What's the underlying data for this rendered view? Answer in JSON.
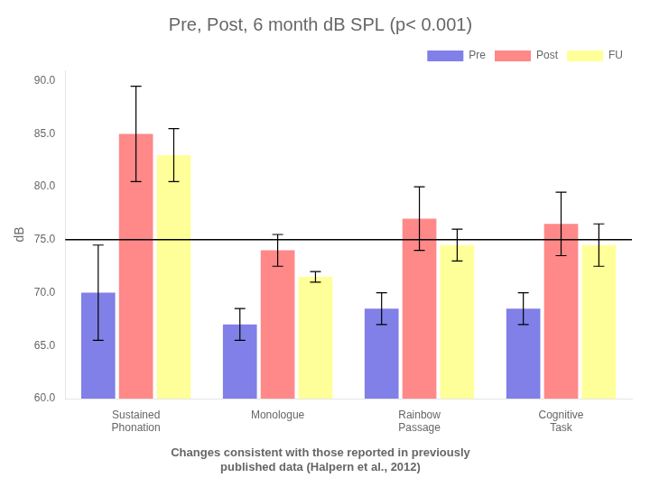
{
  "chart_data": {
    "type": "bar",
    "title": "Pre, Post, 6 month dB SPL (p< 0.001)",
    "subtitle": "Changes consistent with those reported in previously\npublished data (Halpern et al., 2012)",
    "ylabel": "dB",
    "categories": [
      "Sustained\nPhonation",
      "Monologue",
      "Rainbow\nPassage",
      "Cognitive\nTask"
    ],
    "series": [
      {
        "name": "Pre",
        "color": "#8080e8",
        "values": [
          70.0,
          67.0,
          68.5,
          68.5
        ],
        "errors": [
          4.5,
          1.5,
          1.5,
          1.5
        ]
      },
      {
        "name": "Post",
        "color": "#ff8888",
        "values": [
          85.0,
          74.0,
          77.0,
          76.5
        ],
        "errors": [
          4.5,
          1.5,
          3.0,
          3.0
        ]
      },
      {
        "name": "FU",
        "color": "#ffff99",
        "values": [
          83.0,
          71.5,
          74.5,
          74.5
        ],
        "errors": [
          2.5,
          0.5,
          1.5,
          2.0
        ]
      }
    ],
    "ylim": [
      60.0,
      91.0
    ],
    "yticks": [
      {
        "value": 60.0,
        "label": "60.0"
      },
      {
        "value": 65.0,
        "label": "65.0"
      },
      {
        "value": 70.0,
        "label": "70.0"
      },
      {
        "value": 75.0,
        "label": "75.0"
      },
      {
        "value": 80.0,
        "label": "80.0"
      },
      {
        "value": 85.0,
        "label": "85.0"
      },
      {
        "value": 90.0,
        "label": "90.0"
      }
    ],
    "hline": 75.0,
    "grid": false,
    "legend": "upper right"
  }
}
